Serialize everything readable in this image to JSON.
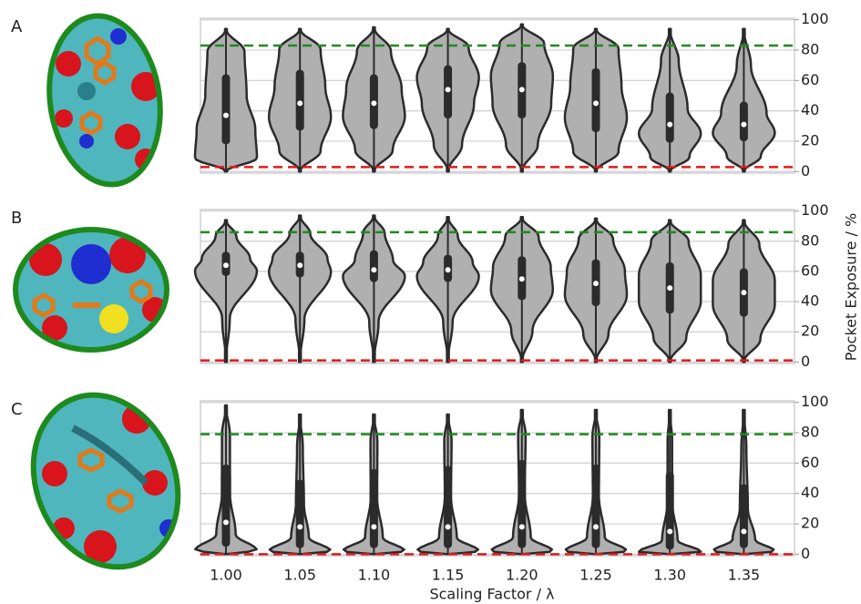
{
  "chart_data": {
    "type": "violin",
    "xlabel": "Scaling Factor / λ",
    "ylabel": "Pocket Exposure / %",
    "categories": [
      "1.00",
      "1.05",
      "1.10",
      "1.15",
      "1.20",
      "1.25",
      "1.30",
      "1.35"
    ],
    "ylim": [
      -1,
      101
    ],
    "yticks": [
      0,
      20,
      40,
      60,
      80,
      100
    ],
    "grid": true,
    "color": "#b0b0b0",
    "panels": [
      {
        "label": "A",
        "min": [
          0,
          0,
          0,
          0,
          0,
          0,
          0,
          0
        ],
        "q1": [
          18,
          27,
          28,
          35,
          35,
          26,
          19,
          20
        ],
        "median": [
          37,
          45,
          45,
          54,
          54,
          45,
          31,
          31
        ],
        "q3": [
          64,
          67,
          64,
          70,
          72,
          68,
          52,
          46
        ],
        "max": [
          94,
          94,
          95,
          94,
          97,
          94,
          94,
          94
        ],
        "upper_ref": 83,
        "lower_ref": 3
      },
      {
        "label": "B",
        "min": [
          0,
          0,
          0,
          0,
          0,
          0,
          0,
          0
        ],
        "q1": [
          57,
          56,
          53,
          53,
          41,
          37,
          32,
          30
        ],
        "median": [
          64,
          64,
          61,
          61,
          55,
          52,
          49,
          46
        ],
        "q3": [
          73,
          73,
          74,
          71,
          70,
          68,
          66,
          62
        ],
        "max": [
          94,
          97,
          97,
          96,
          96,
          95,
          94,
          94
        ],
        "upper_ref": 86,
        "lower_ref": 1
      },
      {
        "label": "C",
        "min": [
          0,
          0,
          0,
          0,
          0,
          0,
          0,
          0
        ],
        "q1": [
          5,
          4,
          4,
          4,
          4,
          4,
          3,
          4
        ],
        "median": [
          21,
          18,
          18,
          18,
          18,
          18,
          15,
          15
        ],
        "q3": [
          59,
          49,
          56,
          58,
          62,
          59,
          54,
          46
        ],
        "max": [
          98,
          92,
          92,
          92,
          95,
          95,
          95,
          95
        ],
        "upper_ref": 79,
        "lower_ref": 0
      }
    ]
  }
}
